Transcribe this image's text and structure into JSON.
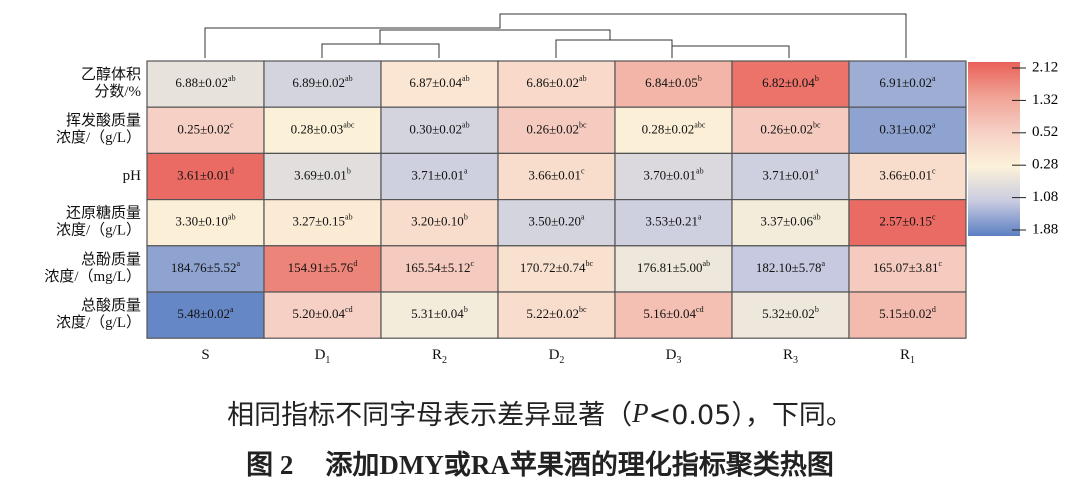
{
  "chart_data": {
    "type": "heatmap",
    "rows": [
      [
        "乙醇体积",
        "分数/%"
      ],
      [
        "挥发酸质量",
        "浓度/（g/L）"
      ],
      [
        "pH"
      ],
      [
        "还原糖质量",
        "浓度/（g/L）"
      ],
      [
        "总酚质量",
        "浓度/（mg/L）"
      ],
      [
        "总酸质量",
        "浓度/（g/L）"
      ]
    ],
    "columns": [
      [
        "S"
      ],
      [
        "D",
        "1"
      ],
      [
        "R",
        "2"
      ],
      [
        "D",
        "2"
      ],
      [
        "D",
        "3"
      ],
      [
        "R",
        "3"
      ],
      [
        "R",
        "1"
      ]
    ],
    "z": [
      [
        -0.6,
        -0.9,
        0.0,
        0.3,
        1.0,
        1.9,
        -1.4
      ],
      [
        0.5,
        -0.3,
        -0.9,
        0.6,
        -0.2,
        0.6,
        -1.5
      ],
      [
        2.0,
        -0.7,
        -1.0,
        0.2,
        -0.8,
        -1.0,
        0.2
      ],
      [
        -0.2,
        -0.1,
        0.2,
        -0.9,
        -1.0,
        -0.4,
        2.0
      ],
      [
        -1.5,
        1.7,
        0.6,
        0.1,
        -0.5,
        -1.1,
        0.6
      ],
      [
        -1.8,
        0.5,
        -0.4,
        0.2,
        0.8,
        -0.5,
        0.9
      ]
    ],
    "cell_text": [
      [
        "6.88±0.02",
        "6.89±0.02",
        "6.87±0.04",
        "6.86±0.02",
        "6.84±0.05",
        "6.82±0.04",
        "6.91±0.02"
      ],
      [
        "0.25±0.02",
        "0.28±0.03",
        "0.30±0.02",
        "0.26±0.02",
        "0.28±0.02",
        "0.26±0.02",
        "0.31±0.02"
      ],
      [
        "3.61±0.01",
        "3.69±0.01",
        "3.71±0.01",
        "3.66±0.01",
        "3.70±0.01",
        "3.71±0.01",
        "3.66±0.01"
      ],
      [
        "3.30±0.10",
        "3.27±0.15",
        "3.20±0.10",
        "3.50±0.20",
        "3.53±0.21",
        "3.37±0.06",
        "2.57±0.15"
      ],
      [
        "184.76±5.52",
        "154.91±5.76",
        "165.54±5.12",
        "170.72±0.74",
        "176.81±5.00",
        "182.10±5.78",
        "165.07±3.81"
      ],
      [
        "5.48±0.02",
        "5.20±0.04",
        "5.31±0.04",
        "5.22±0.02",
        "5.16±0.04",
        "5.32±0.02",
        "5.15±0.02"
      ]
    ],
    "letters": [
      [
        "ab",
        "ab",
        "ab",
        "ab",
        "b",
        "b",
        "a"
      ],
      [
        "c",
        "abc",
        "ab",
        "bc",
        "abc",
        "bc",
        "a"
      ],
      [
        "d",
        "b",
        "a",
        "c",
        "ab",
        "a",
        "c"
      ],
      [
        "ab",
        "ab",
        "b",
        "a",
        "a",
        "ab",
        "c"
      ],
      [
        "a",
        "d",
        "c",
        "bc",
        "ab",
        "a",
        "c"
      ],
      [
        "a",
        "cd",
        "b",
        "bc",
        "cd",
        "b",
        "d"
      ]
    ],
    "clim": [
      -1.88,
      2.12
    ],
    "colorscale": [
      "#5b7fc3",
      "#c9cbe0",
      "#fcf2d9",
      "#f6cfc4",
      "#f0a395",
      "#e9615a"
    ],
    "cticks": [
      2.12,
      1.32,
      0.52,
      {
        "value": -0.28,
        "label": "0.28"
      },
      {
        "value": -1.08,
        "label": "1.08"
      },
      {
        "value": -1.88,
        "label": "1.88"
      }
    ]
  },
  "caption": {
    "note": [
      "相同指标不同字母表示差异显著（",
      "P",
      "<0.05），下同。"
    ],
    "figure_no": "图 2",
    "figure_title": "添加DMY或RA苹果酒的理化指标聚类热图"
  }
}
